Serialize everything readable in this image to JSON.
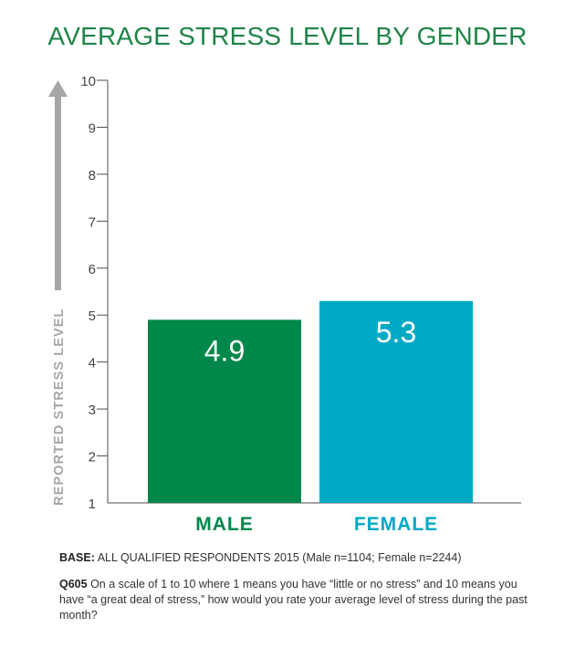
{
  "chart_data": {
    "type": "bar",
    "title": "AVERAGE STRESS LEVEL BY GENDER",
    "ylabel": "REPORTED STRESS LEVEL",
    "xlabel": "",
    "ylim": [
      1,
      10
    ],
    "yticks": [
      "1",
      "2",
      "3",
      "4",
      "5",
      "6",
      "7",
      "8",
      "9",
      "10"
    ],
    "categories": [
      "MALE",
      "FEMALE"
    ],
    "values": [
      4.9,
      5.3
    ],
    "value_labels": [
      "4.9",
      "5.3"
    ],
    "colors": [
      "#00874a",
      "#00a9c4"
    ],
    "grid": false,
    "legend": "none"
  },
  "notes": {
    "base_label": "BASE:",
    "base_text": " ALL QUALIFIED RESPONDENTS 2015 (Male n=1104;  Female n=2244)",
    "question_label": "Q605",
    "question_text": " On a scale of 1 to 10 where 1 means you have “little or no stress” and 10 means you have “a great deal of stress,” how would you rate your average level of stress during the past month?"
  }
}
